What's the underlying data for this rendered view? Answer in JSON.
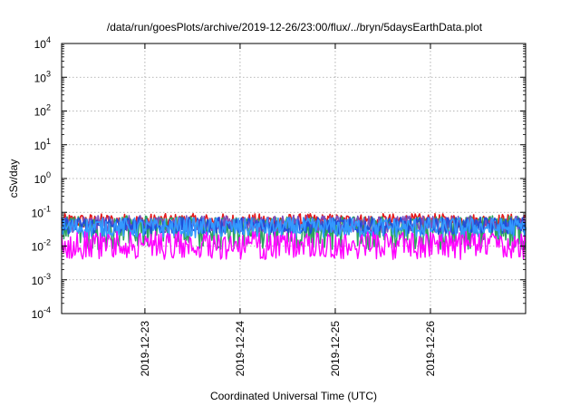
{
  "chart_data": {
    "type": "line",
    "title": "/data/run/goesPlots/archive/2019-12-26/23:00/flux/../bryn/5daysEarthData.plot",
    "xlabel": "Coordinated Universal Time (UTC)",
    "ylabel": "cSv/day",
    "yscale": "log",
    "ylim": [
      0.0001,
      10000
    ],
    "y_ticks": [
      {
        "base": "10",
        "exp": "-4"
      },
      {
        "base": "10",
        "exp": "-3"
      },
      {
        "base": "10",
        "exp": "-2"
      },
      {
        "base": "10",
        "exp": "-1"
      },
      {
        "base": "10",
        "exp": "0"
      },
      {
        "base": "10",
        "exp": "1"
      },
      {
        "base": "10",
        "exp": "2"
      },
      {
        "base": "10",
        "exp": "3"
      },
      {
        "base": "10",
        "exp": "4"
      }
    ],
    "xlim": [
      "2019-12-22 03:00",
      "2019-12-27 00:00"
    ],
    "x_ticks": [
      "2019-12-23",
      "2019-12-24",
      "2019-12-25",
      "2019-12-26"
    ],
    "grid": true,
    "legend": "none",
    "series": [
      {
        "color": "#e41a1c",
        "base": 0.055,
        "spread": 0.22,
        "spikes": 0.0
      },
      {
        "color": "#2ca25f",
        "base": 0.025,
        "spread": 0.5,
        "spikes": 0.0
      },
      {
        "color": "#7b4fbf",
        "base": 0.045,
        "spread": 0.25,
        "spikes": 0.0
      },
      {
        "color": "#1f4ed8",
        "base": 0.04,
        "spread": 0.25,
        "spikes": 0.0
      },
      {
        "color": "#3399ff",
        "base": 0.035,
        "spread": 0.3,
        "spikes": 0.0
      },
      {
        "color": "#ff00ff",
        "base": 0.009,
        "spread": 0.35,
        "spikes": 0.0
      }
    ]
  }
}
